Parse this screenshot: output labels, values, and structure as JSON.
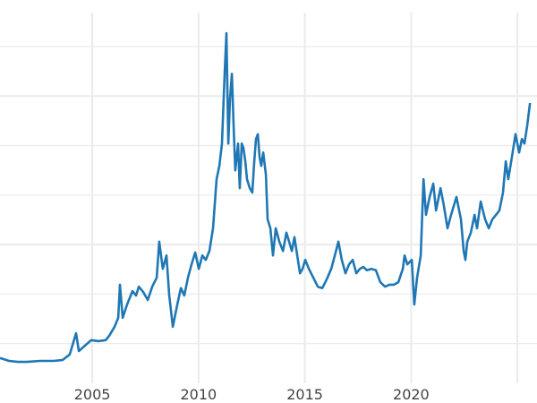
{
  "chart_data": {
    "type": "line",
    "title": "",
    "xlabel": "",
    "ylabel": "",
    "xlim": [
      2000.66,
      2025.92
    ],
    "ylim": [
      -2.0,
      79.4
    ],
    "grid": true,
    "legend": "none",
    "line_color": "#1f77b4",
    "x_ticks": [
      2005,
      2010,
      2015,
      2020,
      2025
    ],
    "x_tick_labels": [
      "2005",
      "2010",
      "2015",
      "2020",
      ""
    ],
    "y_gridlines": [
      10,
      20,
      30,
      40,
      50,
      60,
      70
    ],
    "y_major_gridlines": [
      30,
      60
    ],
    "series": [
      {
        "x": [
          2000.66,
          2001.08,
          2001.5,
          2001.92,
          2002.55,
          2003.19,
          2003.61,
          2003.94,
          2004.24,
          2004.37,
          2004.66,
          2004.95,
          2005.29,
          2005.63,
          2005.8,
          2006.05,
          2006.22,
          2006.3,
          2006.43,
          2006.64,
          2006.89,
          2007.06,
          2007.19,
          2007.4,
          2007.61,
          2007.82,
          2008.03,
          2008.15,
          2008.32,
          2008.49,
          2008.62,
          2008.79,
          2009.0,
          2009.17,
          2009.33,
          2009.5,
          2009.67,
          2009.84,
          2010.01,
          2010.18,
          2010.34,
          2010.51,
          2010.68,
          2010.85,
          2010.98,
          2011.1,
          2011.23,
          2011.31,
          2011.4,
          2011.48,
          2011.57,
          2011.65,
          2011.73,
          2011.86,
          2011.94,
          2012.03,
          2012.11,
          2012.2,
          2012.28,
          2012.41,
          2012.53,
          2012.62,
          2012.7,
          2012.79,
          2012.87,
          2012.95,
          2013.04,
          2013.17,
          2013.25,
          2013.38,
          2013.5,
          2013.63,
          2013.8,
          2013.97,
          2014.13,
          2014.26,
          2014.39,
          2014.51,
          2014.64,
          2014.77,
          2014.89,
          2015.02,
          2015.19,
          2015.4,
          2015.61,
          2015.82,
          2016.03,
          2016.24,
          2016.41,
          2016.58,
          2016.74,
          2016.91,
          2017.08,
          2017.25,
          2017.42,
          2017.59,
          2017.75,
          2017.92,
          2018.13,
          2018.34,
          2018.55,
          2018.77,
          2018.98,
          2019.19,
          2019.4,
          2019.61,
          2019.69,
          2019.82,
          2020.03,
          2020.15,
          2020.28,
          2020.45,
          2020.58,
          2020.7,
          2020.87,
          2021.04,
          2021.17,
          2021.38,
          2021.54,
          2021.71,
          2021.88,
          2022.13,
          2022.34,
          2022.47,
          2022.55,
          2022.64,
          2022.81,
          2022.98,
          2023.1,
          2023.27,
          2023.48,
          2023.65,
          2023.82,
          2023.99,
          2024.15,
          2024.32,
          2024.45,
          2024.57,
          2024.74,
          2024.91,
          2025.08,
          2025.21,
          2025.33,
          2025.46,
          2025.59
        ],
        "y": [
          7.1,
          6.5,
          6.3,
          6.3,
          6.5,
          6.5,
          6.7,
          7.8,
          12.1,
          8.5,
          9.6,
          10.7,
          10.5,
          10.7,
          11.6,
          13.4,
          15.2,
          21.9,
          15.2,
          17.9,
          20.6,
          19.7,
          21.5,
          20.4,
          18.8,
          21.5,
          23.3,
          30.6,
          25.1,
          27.8,
          19.7,
          13.4,
          17.9,
          21.2,
          19.7,
          23.3,
          26.0,
          28.4,
          25.1,
          27.8,
          26.9,
          28.7,
          33.3,
          43.2,
          45.9,
          50.4,
          64.9,
          72.7,
          50.4,
          59.5,
          64.5,
          54.1,
          45.0,
          50.4,
          41.4,
          50.4,
          49.5,
          46.8,
          43.2,
          41.4,
          40.5,
          46.8,
          51.3,
          52.3,
          47.7,
          45.9,
          48.6,
          44.1,
          35.1,
          33.3,
          27.8,
          33.3,
          30.6,
          28.7,
          32.4,
          30.6,
          28.7,
          31.5,
          27.8,
          24.2,
          25.1,
          26.9,
          25.1,
          23.3,
          21.5,
          21.2,
          23.0,
          25.1,
          27.8,
          30.6,
          26.9,
          24.2,
          26.0,
          26.9,
          24.2,
          25.1,
          25.5,
          24.8,
          25.1,
          24.8,
          22.4,
          21.5,
          21.9,
          21.9,
          22.4,
          25.1,
          27.8,
          26.0,
          26.9,
          17.9,
          23.3,
          27.8,
          43.2,
          36.0,
          39.6,
          42.3,
          36.9,
          41.4,
          37.8,
          33.3,
          36.0,
          39.6,
          35.1,
          28.7,
          26.9,
          30.6,
          32.4,
          36.0,
          33.3,
          38.7,
          35.1,
          33.3,
          35.1,
          36.0,
          36.9,
          40.5,
          46.8,
          43.2,
          47.7,
          52.3,
          48.6,
          51.3,
          50.4,
          54.1,
          58.6
        ]
      }
    ]
  }
}
